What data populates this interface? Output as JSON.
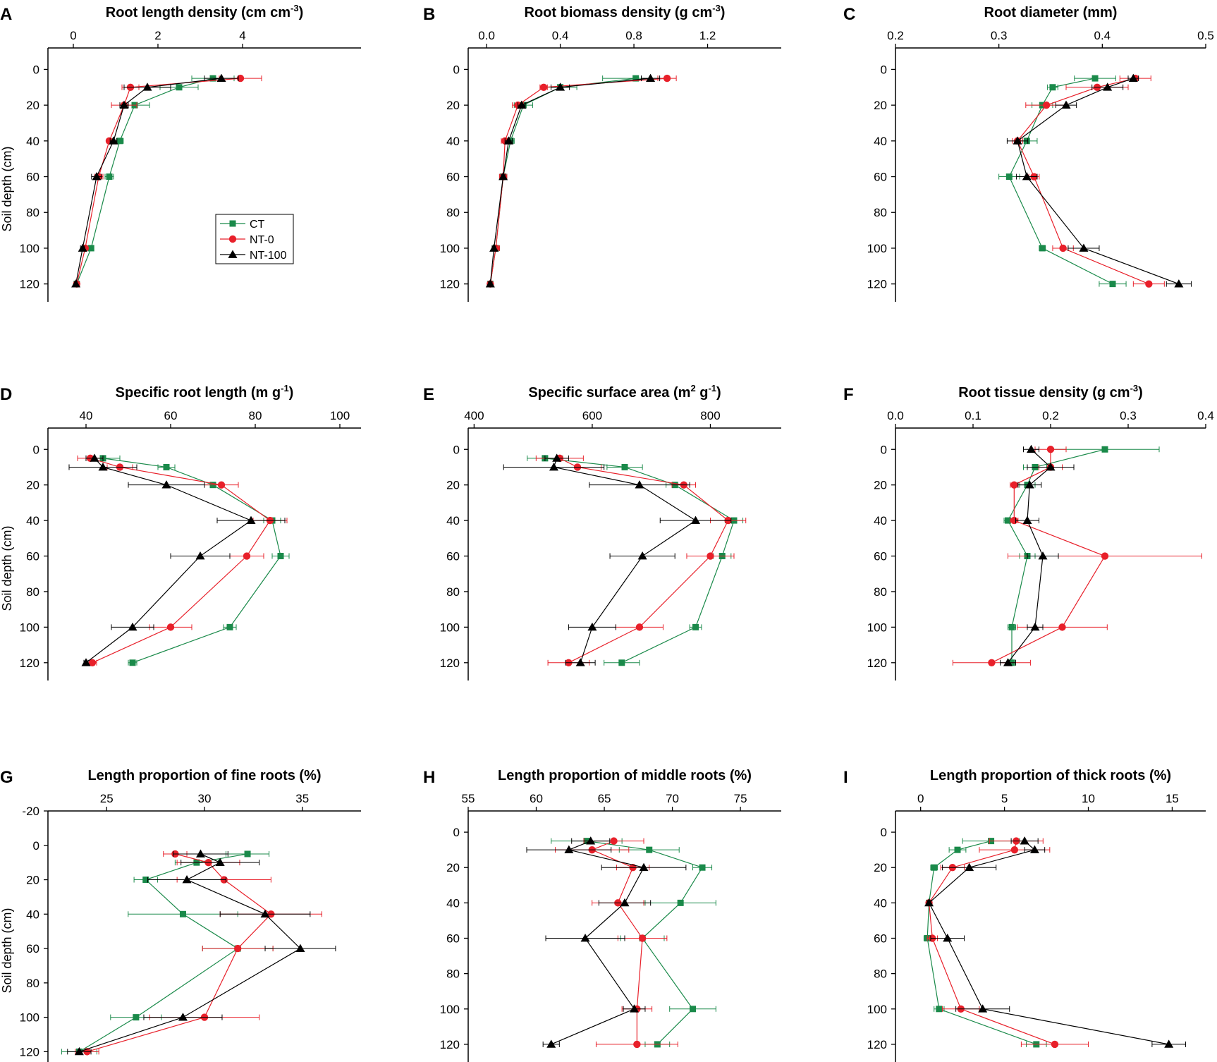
{
  "figure": {
    "ylabel": "Soil depth (cm)",
    "legend": [
      {
        "name": "CT",
        "color": "#1a8a4a",
        "marker": "square"
      },
      {
        "name": "NT-0",
        "color": "#e8202a",
        "marker": "circle"
      },
      {
        "name": "NT-100",
        "color": "#000000",
        "marker": "triangle"
      }
    ]
  },
  "chart_data": [
    {
      "panel": "A",
      "type": "line",
      "title": "Root length density (cm cm",
      "title_sup": "-3",
      "title_end": ")",
      "xlabel": "Root length density (cm cm-3)",
      "ylabel": "Soil depth (cm)",
      "xlim": [
        -0.6,
        6.8
      ],
      "xticks": [
        0,
        2,
        4
      ],
      "ylim": [
        130,
        -12
      ],
      "yticks": [
        0,
        20,
        40,
        60,
        80,
        100,
        120
      ],
      "legend_position": "middle-center",
      "series": [
        {
          "name": "CT",
          "depths": [
            5,
            10,
            20,
            40,
            60,
            100,
            120
          ],
          "values": [
            3.3,
            2.5,
            1.45,
            1.1,
            0.85,
            0.42,
            0.08
          ],
          "errors": [
            0.5,
            0.45,
            0.35,
            0.08,
            0.1,
            0.05,
            0.03
          ]
        },
        {
          "name": "NT-0",
          "depths": [
            5,
            10,
            20,
            40,
            60,
            100,
            120
          ],
          "values": [
            3.95,
            1.35,
            1.2,
            0.85,
            0.6,
            0.28,
            0.08
          ],
          "errors": [
            0.5,
            0.2,
            0.3,
            0.05,
            0.1,
            0.05,
            0.03
          ]
        },
        {
          "name": "NT-100",
          "depths": [
            5,
            10,
            20,
            40,
            60,
            100,
            120
          ],
          "values": [
            3.5,
            1.75,
            1.2,
            0.95,
            0.55,
            0.22,
            0.06
          ],
          "errors": [
            0.4,
            0.55,
            0.1,
            0.08,
            0.12,
            0.05,
            0.03
          ]
        }
      ]
    },
    {
      "panel": "B",
      "type": "line",
      "title": "Root biomass density (g cm",
      "title_sup": "-3",
      "title_end": ")",
      "xlabel": "Root biomass density (g cm-3)",
      "ylabel": "Soil depth (cm)",
      "xlim": [
        -0.1,
        1.6
      ],
      "xticks": [
        0.0,
        0.4,
        0.8,
        1.2
      ],
      "xtick_labels": [
        "0.0",
        "0.4",
        "0.8",
        "1.2"
      ],
      "ylim": [
        130,
        -12
      ],
      "yticks": [
        0,
        20,
        40,
        60,
        80,
        100,
        120
      ],
      "series": [
        {
          "name": "CT",
          "depths": [
            5,
            10,
            20,
            40,
            60,
            100,
            120
          ],
          "values": [
            0.81,
            0.4,
            0.2,
            0.13,
            0.09,
            0.05,
            0.02
          ],
          "errors": [
            0.18,
            0.09,
            0.05,
            0.02,
            0.02,
            0.02,
            0.01
          ]
        },
        {
          "name": "NT-0",
          "depths": [
            5,
            10,
            20,
            40,
            60,
            100,
            120
          ],
          "values": [
            0.98,
            0.31,
            0.17,
            0.1,
            0.09,
            0.05,
            0.02
          ],
          "errors": [
            0.05,
            0.02,
            0.03,
            0.02,
            0.02,
            0.02,
            0.01
          ]
        },
        {
          "name": "NT-100",
          "depths": [
            5,
            10,
            20,
            40,
            60,
            100,
            120
          ],
          "values": [
            0.89,
            0.4,
            0.19,
            0.12,
            0.09,
            0.04,
            0.02
          ],
          "errors": [
            0.05,
            0.05,
            0.02,
            0.02,
            0.01,
            0.01,
            0.01
          ]
        }
      ]
    },
    {
      "panel": "C",
      "type": "line",
      "title": "Root diameter (mm)",
      "title_sup": "",
      "title_end": "",
      "xlabel": "Root diameter (mm)",
      "ylabel": "Soil depth (cm)",
      "xlim": [
        0.2,
        0.5
      ],
      "xticks": [
        0.2,
        0.3,
        0.4,
        0.5
      ],
      "xtick_labels": [
        "0.2",
        "0.3",
        "0.4",
        "0.5"
      ],
      "ylim": [
        130,
        -12
      ],
      "yticks": [
        0,
        20,
        40,
        60,
        80,
        100,
        120
      ],
      "series": [
        {
          "name": "CT",
          "depths": [
            5,
            10,
            20,
            40,
            60,
            100,
            120
          ],
          "values": [
            0.393,
            0.352,
            0.342,
            0.327,
            0.31,
            0.342,
            0.41
          ],
          "errors": [
            0.02,
            0.005,
            0.01,
            0.01,
            0.01,
            0.003,
            0.013
          ]
        },
        {
          "name": "NT-0",
          "depths": [
            5,
            10,
            20,
            40,
            60,
            100,
            120
          ],
          "values": [
            0.432,
            0.395,
            0.346,
            0.318,
            0.334,
            0.362,
            0.445
          ],
          "errors": [
            0.015,
            0.03,
            0.02,
            0.005,
            0.005,
            0.01,
            0.015
          ]
        },
        {
          "name": "NT-100",
          "depths": [
            5,
            10,
            20,
            40,
            60,
            100,
            120
          ],
          "values": [
            0.43,
            0.405,
            0.365,
            0.318,
            0.327,
            0.382,
            0.474
          ],
          "errors": [
            0.005,
            0.015,
            0.01,
            0.01,
            0.01,
            0.015,
            0.012
          ]
        }
      ]
    },
    {
      "panel": "D",
      "type": "line",
      "title": "Specific root length (m g",
      "title_sup": "-1",
      "title_end": ")",
      "xlabel": "Specific root length (m g-1)",
      "ylabel": "Soil depth (cm)",
      "xlim": [
        31,
        105
      ],
      "xticks": [
        40,
        60,
        80,
        100
      ],
      "ylim": [
        130,
        -12
      ],
      "yticks": [
        0,
        20,
        40,
        60,
        80,
        100,
        120
      ],
      "series": [
        {
          "name": "CT",
          "depths": [
            5,
            10,
            20,
            40,
            60,
            100,
            120
          ],
          "values": [
            44,
            59,
            70,
            84,
            86,
            74,
            51
          ],
          "errors": [
            4,
            2,
            2,
            2,
            2,
            1.5,
            1
          ]
        },
        {
          "name": "NT-0",
          "depths": [
            5,
            10,
            20,
            40,
            60,
            100,
            120
          ],
          "values": [
            41,
            48,
            72,
            83.5,
            78,
            60,
            41.5
          ],
          "errors": [
            3,
            3,
            4,
            4,
            4,
            5,
            1
          ]
        },
        {
          "name": "NT-100",
          "depths": [
            5,
            10,
            20,
            40,
            60,
            100,
            120
          ],
          "values": [
            42,
            44,
            59,
            79,
            67,
            51,
            40
          ],
          "errors": [
            2,
            8,
            9,
            8,
            7,
            5,
            0.5
          ]
        }
      ]
    },
    {
      "panel": "E",
      "type": "line",
      "title": "Specific surface area (m",
      "title_sup": "2",
      "title_end": " g-1)",
      "xlabel": "Specific surface area (m2 g-1)",
      "ylabel": "Soil depth (cm)",
      "xlim": [
        390,
        920
      ],
      "xticks": [
        400,
        600,
        800
      ],
      "ylim": [
        130,
        -12
      ],
      "yticks": [
        0,
        20,
        40,
        60,
        80,
        100,
        120
      ],
      "series": [
        {
          "name": "CT",
          "depths": [
            5,
            10,
            20,
            40,
            60,
            100,
            120
          ],
          "values": [
            520,
            655,
            740,
            840,
            820,
            775,
            650
          ],
          "errors": [
            30,
            30,
            15,
            15,
            15,
            10,
            30
          ]
        },
        {
          "name": "NT-0",
          "depths": [
            5,
            10,
            20,
            40,
            60,
            100,
            120
          ],
          "values": [
            545,
            575,
            755,
            830,
            800,
            680,
            560
          ],
          "errors": [
            40,
            40,
            20,
            30,
            40,
            40,
            35
          ]
        },
        {
          "name": "NT-100",
          "depths": [
            5,
            10,
            20,
            40,
            60,
            100,
            120
          ],
          "values": [
            540,
            535,
            680,
            775,
            685,
            600,
            580
          ],
          "errors": [
            20,
            85,
            85,
            60,
            55,
            40,
            25
          ]
        }
      ]
    },
    {
      "panel": "F",
      "type": "line",
      "title": "Root tissue density (g cm",
      "title_sup": "-3",
      "title_end": ")",
      "xlabel": "Root tissue density (g cm-3)",
      "ylabel": "Soil depth (cm)",
      "xlim": [
        0.0,
        0.4
      ],
      "xticks": [
        0.0,
        0.1,
        0.2,
        0.3,
        0.4
      ],
      "xtick_labels": [
        "0.0",
        "0.1",
        "0.2",
        "0.3",
        "0.4"
      ],
      "ylim": [
        130,
        -12
      ],
      "yticks": [
        0,
        20,
        40,
        60,
        80,
        100,
        120
      ],
      "series": [
        {
          "name": "CT",
          "depths": [
            0,
            10,
            20,
            40,
            60,
            100,
            120
          ],
          "values": [
            0.27,
            0.18,
            0.17,
            0.145,
            0.17,
            0.15,
            0.15
          ],
          "errors": [
            0.07,
            0.015,
            0.01,
            0.005,
            0.01,
            0.005,
            0.005
          ]
        },
        {
          "name": "NT-0",
          "depths": [
            0,
            10,
            20,
            40,
            60,
            100,
            120
          ],
          "values": [
            0.2,
            0.2,
            0.153,
            0.153,
            0.27,
            0.215,
            0.124
          ],
          "errors": [
            0.02,
            0.015,
            0.005,
            0.005,
            0.125,
            0.058,
            0.05
          ]
        },
        {
          "name": "NT-100",
          "depths": [
            0,
            10,
            20,
            40,
            60,
            100,
            120
          ],
          "values": [
            0.175,
            0.2,
            0.173,
            0.17,
            0.19,
            0.18,
            0.145
          ],
          "errors": [
            0.01,
            0.03,
            0.015,
            0.015,
            0.02,
            0.01,
            0.01
          ]
        }
      ]
    },
    {
      "panel": "G",
      "type": "line",
      "title": "Length proportion of fine roots (%)",
      "title_sup": "",
      "title_end": "",
      "xlabel": "Length proportion of fine roots (%)",
      "ylabel": "Soil depth (cm)",
      "xlim": [
        22,
        38
      ],
      "xticks": [
        25,
        30,
        35
      ],
      "ylim": [
        126,
        -20
      ],
      "yticks": [
        -20,
        0,
        20,
        40,
        60,
        80,
        100,
        120
      ],
      "series": [
        {
          "name": "CT",
          "depths": [
            5,
            10,
            20,
            40,
            60,
            100,
            120
          ],
          "values": [
            32.2,
            29.6,
            27.0,
            28.9,
            31.7,
            26.5,
            23.6
          ],
          "errors": [
            1.1,
            1.1,
            0.6,
            2.8,
            1.8,
            1.3,
            0.9
          ]
        },
        {
          "name": "NT-0",
          "depths": [
            5,
            10,
            20,
            40,
            60,
            100,
            120
          ],
          "values": [
            28.5,
            30.2,
            31.0,
            33.4,
            31.7,
            30.0,
            24.0
          ],
          "errors": [
            0.6,
            1.6,
            2.4,
            2.6,
            1.8,
            2.8,
            0.6
          ]
        },
        {
          "name": "NT-100",
          "depths": [
            5,
            10,
            20,
            40,
            60,
            100,
            120
          ],
          "values": [
            29.8,
            30.8,
            29.1,
            33.1,
            34.9,
            28.9,
            23.6
          ],
          "errors": [
            1.4,
            2.0,
            2.0,
            2.3,
            1.8,
            2.0,
            0.6
          ]
        }
      ]
    },
    {
      "panel": "H",
      "type": "line",
      "title": "Length proportion of middle roots (%)",
      "title_sup": "",
      "title_end": "",
      "xlabel": "Length proportion of middle roots (%)",
      "ylabel": "Soil depth (cm)",
      "xlim": [
        55,
        78
      ],
      "xticks": [
        55,
        60,
        65,
        70,
        75
      ],
      "ylim": [
        130,
        -12
      ],
      "yticks": [
        0,
        20,
        40,
        60,
        80,
        100,
        120
      ],
      "series": [
        {
          "name": "CT",
          "depths": [
            5,
            10,
            20,
            40,
            60,
            100,
            120
          ],
          "values": [
            63.7,
            68.3,
            72.2,
            70.6,
            67.8,
            71.5,
            68.9
          ],
          "errors": [
            2.6,
            2.2,
            0.7,
            2.6,
            1.6,
            1.7,
            0.9
          ]
        },
        {
          "name": "NT-0",
          "depths": [
            5,
            10,
            20,
            40,
            60,
            100,
            120
          ],
          "values": [
            65.7,
            64.1,
            67.1,
            66.0,
            67.8,
            67.4,
            67.4
          ],
          "errors": [
            2.2,
            2.7,
            1.2,
            1.9,
            1.8,
            1.1,
            3.0
          ]
        },
        {
          "name": "NT-100",
          "depths": [
            5,
            10,
            20,
            40,
            60,
            100,
            120
          ],
          "values": [
            64.0,
            62.4,
            67.9,
            66.5,
            63.6,
            67.2,
            61.1
          ],
          "errors": [
            1.4,
            3.1,
            3.1,
            1.9,
            2.9,
            0.8,
            0.6
          ]
        }
      ]
    },
    {
      "panel": "I",
      "type": "line",
      "title": "Length proportion of thick roots (%)",
      "title_sup": "",
      "title_end": "",
      "xlabel": "Length proportion of thick roots (%)",
      "ylabel": "Soil depth (cm)",
      "xlim": [
        -1.5,
        17
      ],
      "xticks": [
        0,
        5,
        10,
        15
      ],
      "ylim": [
        130,
        -12
      ],
      "yticks": [
        0,
        20,
        40,
        60,
        80,
        100,
        120
      ],
      "series": [
        {
          "name": "CT",
          "depths": [
            5,
            10,
            20,
            40,
            60,
            100,
            120
          ],
          "values": [
            4.2,
            2.2,
            0.8,
            0.5,
            0.4,
            1.1,
            6.9
          ],
          "errors": [
            1.7,
            0.5,
            0.2,
            0.1,
            0.2,
            0.3,
            0.6
          ]
        },
        {
          "name": "NT-0",
          "depths": [
            5,
            10,
            20,
            40,
            60,
            100,
            120
          ],
          "values": [
            5.7,
            5.6,
            1.9,
            0.5,
            0.7,
            2.4,
            8.0
          ],
          "errors": [
            1.6,
            2.1,
            0.7,
            0.1,
            0.3,
            1.1,
            2.0
          ]
        },
        {
          "name": "NT-100",
          "depths": [
            5,
            10,
            20,
            40,
            60,
            100,
            120
          ],
          "values": [
            6.2,
            6.8,
            2.9,
            0.5,
            1.6,
            3.7,
            14.8
          ],
          "errors": [
            0.8,
            0.6,
            1.6,
            0.1,
            1.0,
            1.6,
            1.0
          ]
        }
      ]
    }
  ]
}
